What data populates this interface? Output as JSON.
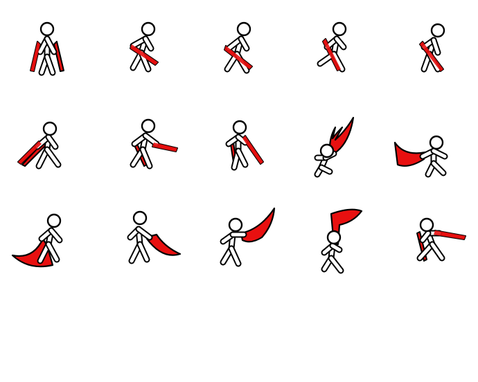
{
  "sheet": {
    "background": "#ffffff",
    "rows": 3,
    "columns": 5,
    "colors": {
      "body_fill": "#ffffff",
      "outline": "#000000",
      "weapon": "#e81010",
      "weapon_highlight": "#ffffff"
    }
  },
  "frames": [
    {
      "id": 1,
      "pose": "idle-stand",
      "weapon": "twin-blades-down"
    },
    {
      "id": 2,
      "pose": "crouch-walk",
      "weapon": "blade-diagonal"
    },
    {
      "id": 3,
      "pose": "step-forward",
      "weapon": "blade-diagonal"
    },
    {
      "id": 4,
      "pose": "lunge-low",
      "weapon": "blade-diagonal"
    },
    {
      "id": 5,
      "pose": "hunch",
      "weapon": "blade-diagonal"
    },
    {
      "id": 6,
      "pose": "kneel-back",
      "weapon": "blade-back-low"
    },
    {
      "id": 7,
      "pose": "thrust",
      "weapon": "blade-forward"
    },
    {
      "id": 8,
      "pose": "twist",
      "weapon": "blade-forward-up"
    },
    {
      "id": 9,
      "pose": "jump-slash",
      "weapon": "slash-arc-up"
    },
    {
      "id": 10,
      "pose": "back-slash",
      "weapon": "slash-arc-back"
    },
    {
      "id": 11,
      "pose": "low-sweep",
      "weapon": "slash-arc-down"
    },
    {
      "id": 12,
      "pose": "crouch-slash",
      "weapon": "slash-arc-right"
    },
    {
      "id": 13,
      "pose": "rising-slash",
      "weapon": "slash-arc-up-right"
    },
    {
      "id": 14,
      "pose": "overhead-slash",
      "weapon": "slash-arc-overhead"
    },
    {
      "id": 15,
      "pose": "recover",
      "weapon": "blade-forward"
    }
  ]
}
